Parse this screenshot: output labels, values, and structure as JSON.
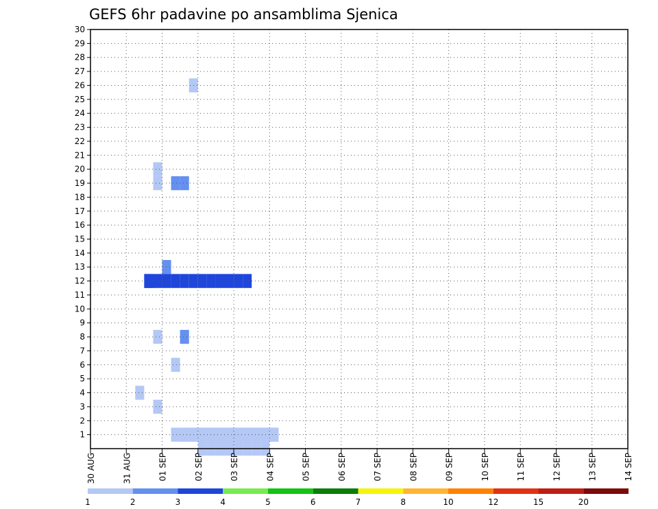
{
  "chart_data": {
    "type": "heatmap",
    "title": "GEFS 6hr padavine po ansamblima Sjenica",
    "x_tick_labels": [
      "30 AUG",
      "31 AUG",
      "01 SEP",
      "02 SEP",
      "03 SEP",
      "04 SEP",
      "05 SEP",
      "06 SEP",
      "07 SEP",
      "08 SEP",
      "09 SEP",
      "10 SEP",
      "11 SEP",
      "12 SEP",
      "13 SEP",
      "14 SEP"
    ],
    "y_tick_labels": [
      "1",
      "2",
      "3",
      "4",
      "5",
      "6",
      "7",
      "8",
      "9",
      "10",
      "11",
      "12",
      "13",
      "14",
      "15",
      "16",
      "17",
      "18",
      "19",
      "20",
      "21",
      "22",
      "23",
      "24",
      "25",
      "26",
      "27",
      "28",
      "29",
      "30"
    ],
    "x_range_days": [
      0,
      15
    ],
    "y_range": [
      0,
      30
    ],
    "grid": true,
    "steps_per_day": 4,
    "legend": {
      "position": "bottom",
      "labels": [
        "1",
        "2",
        "3",
        "4",
        "5",
        "6",
        "7",
        "8",
        "10",
        "12",
        "15",
        "20"
      ],
      "colors": [
        "#b4c8f5",
        "#6490f0",
        "#1e46dc",
        "#78eb50",
        "#14c314",
        "#0a7d0a",
        "#f5f50a",
        "#ffb432",
        "#ff8200",
        "#e13214",
        "#be1e14",
        "#7d0a0a"
      ]
    },
    "cells": [
      {
        "s": "8/3.0",
        "m": 0,
        "c": 0
      },
      {
        "s": "8/3.25",
        "m": 1,
        "c": 0
      },
      {
        "s": "9/2.5",
        "m": 1,
        "c": 0
      },
      {
        "s": "12/1.5",
        "m": 12,
        "c": 2
      },
      {
        "s": "12/2.25",
        "m": 1,
        "c": 0
      },
      {
        "s": "1/1.75",
        "m": 3,
        "c": 0
      },
      {
        "s": "1/1.25",
        "m": 4,
        "c": 0
      },
      {
        "s": "1/2.25",
        "m": 6,
        "c": 0
      },
      {
        "s": "1/2.5",
        "m": 8,
        "c": 1
      },
      {
        "s": "1/1.75",
        "m": 8,
        "c": 0
      },
      {
        "s": "1/1.5",
        "m": 12,
        "c": 2
      },
      {
        "s": "1/2.0",
        "m": 13,
        "c": 1
      },
      {
        "s": "2/2.25",
        "m": 19,
        "c": 1
      },
      {
        "s": "1/1.75",
        "m": 20,
        "c": 0
      },
      {
        "s": "1/2.75",
        "m": 26,
        "c": 0
      },
      {
        "s": "1/1.75",
        "m": 19,
        "c": 0
      }
    ]
  }
}
